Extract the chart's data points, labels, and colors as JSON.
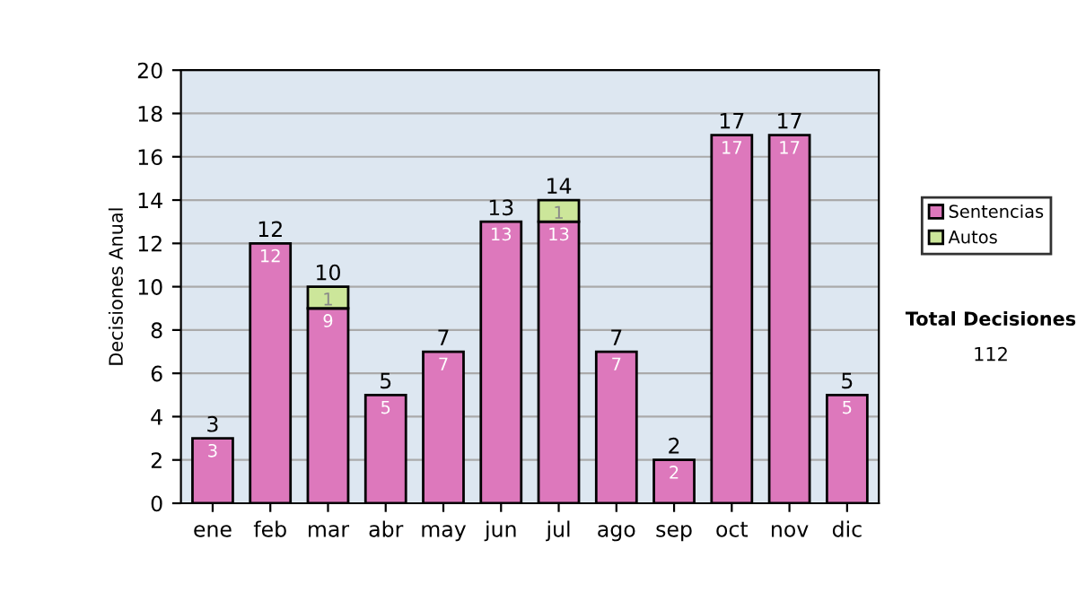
{
  "chart_data": {
    "type": "bar",
    "ylabel": "Decisiones Anual",
    "categories": [
      "ene",
      "feb",
      "mar",
      "abr",
      "may",
      "jun",
      "jul",
      "ago",
      "sep",
      "oct",
      "nov",
      "dic"
    ],
    "stacked": true,
    "series": [
      {
        "name": "Sentencias",
        "color": "#dd78bc",
        "values": [
          3,
          12,
          9,
          5,
          7,
          13,
          13,
          7,
          2,
          17,
          17,
          5
        ]
      },
      {
        "name": "Autos",
        "color": "#cce69a",
        "values": [
          null,
          null,
          1,
          null,
          null,
          null,
          1,
          null,
          null,
          null,
          null,
          null
        ]
      }
    ],
    "data_labels": true,
    "totals": [
      "3",
      "12",
      "10",
      "5",
      "7",
      "13",
      "14",
      "7",
      "2",
      "17",
      "17",
      "5"
    ],
    "ylim": [
      0,
      20
    ],
    "yticks": [
      0,
      2,
      4,
      6,
      8,
      10,
      12,
      14,
      16,
      18,
      20
    ],
    "grid": "y",
    "legend": "right",
    "annotations": [
      "Total Decisiones",
      "112"
    ]
  }
}
